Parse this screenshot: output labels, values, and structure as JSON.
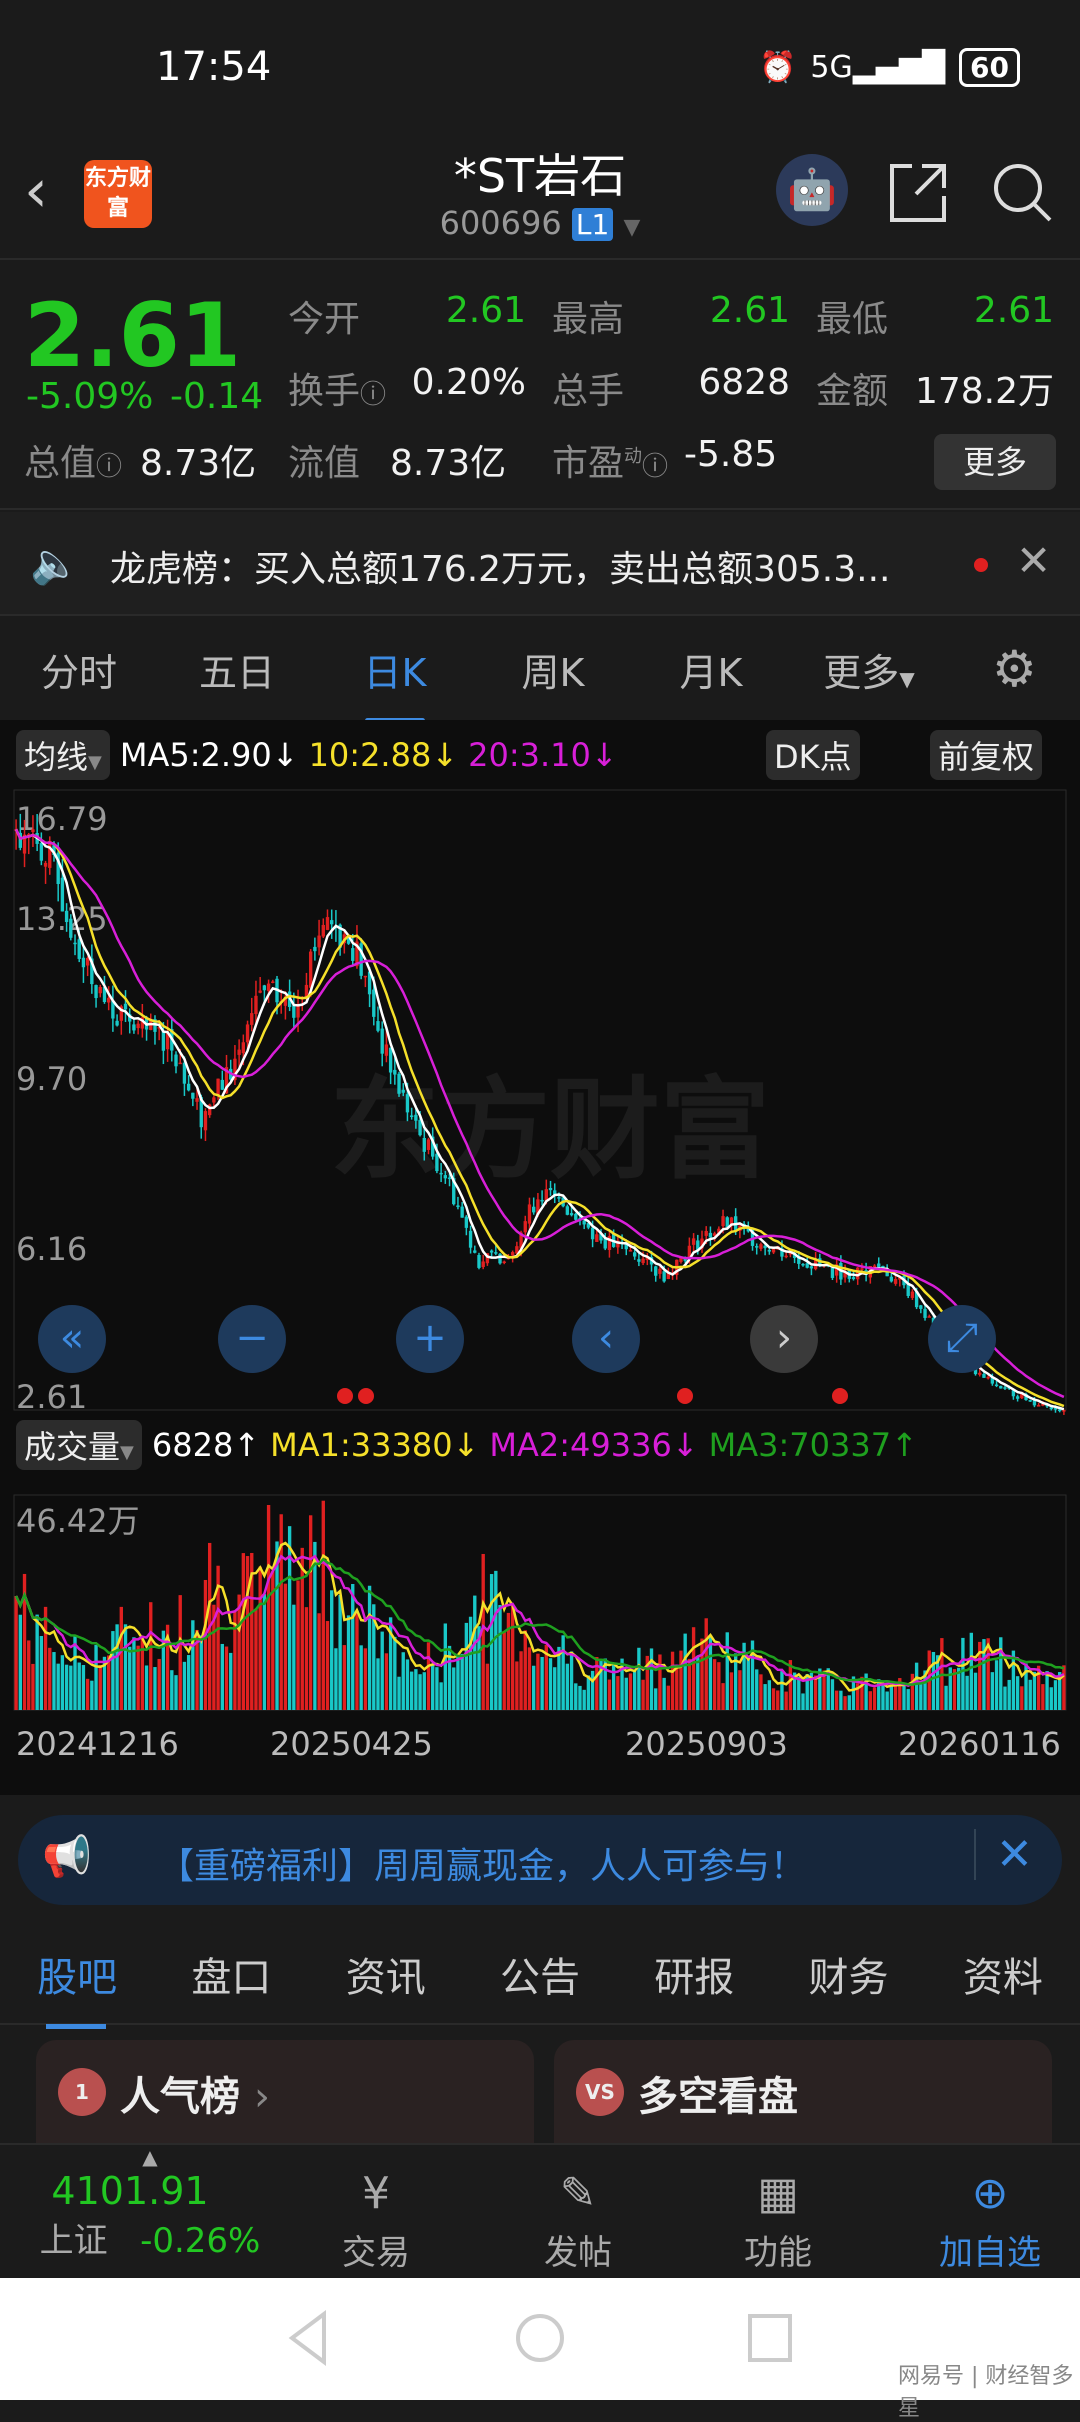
{
  "status": {
    "time": "17:54",
    "network": "5G",
    "battery": "60"
  },
  "header": {
    "logo": "东方财富",
    "title": "*ST岩石",
    "code": "600696",
    "level": "L1"
  },
  "quote": {
    "price": "2.61",
    "change_pct": "-5.09%",
    "change": "-0.14",
    "fields": [
      {
        "label": "今开",
        "value": "2.61",
        "color": "green"
      },
      {
        "label": "最高",
        "value": "2.61",
        "color": "green"
      },
      {
        "label": "最低",
        "value": "2.61",
        "color": "green"
      },
      {
        "label": "换手",
        "value": "0.20%",
        "color": "white"
      },
      {
        "label": "总手",
        "value": "6828",
        "color": "white"
      },
      {
        "label": "金额",
        "value": "178.2万",
        "color": "white"
      },
      {
        "label": "总值",
        "value": "8.73亿",
        "color": "white"
      },
      {
        "label": "流值",
        "value": "8.73亿",
        "color": "white"
      },
      {
        "label": "市盈",
        "sup": "动",
        "value": "-5.85",
        "color": "white"
      }
    ],
    "more": "更多"
  },
  "news": {
    "text": "龙虎榜：买入总额176.2万元，卖出总额305.3..."
  },
  "tabs": [
    "分时",
    "五日",
    "日K",
    "周K",
    "月K",
    "更多"
  ],
  "active_tab": "日K",
  "ma_bar": {
    "selector": "均线",
    "ma5": "MA5:2.90↓",
    "ma10": "10:2.88↓",
    "ma20": "20:3.10↓",
    "dk": "DK点",
    "adjust": "前复权"
  },
  "vol_bar": {
    "selector": "成交量",
    "vol": "6828↑",
    "ma1": "MA1:33380↓",
    "ma2": "MA2:49336↓",
    "ma3": "MA3:70337↑"
  },
  "watermark": "东方财富",
  "colors": {
    "up": "#e02020",
    "down": "#19c8c8",
    "ma5": "#ffffff",
    "ma10": "#f5e02a",
    "ma20": "#d81fd8",
    "vma3": "#1fa01f",
    "accent": "#3d8ae0",
    "green": "#22c722"
  },
  "chart_data": {
    "type": "candlestick",
    "y_ticks": [
      "16.79",
      "13.25",
      "9.70",
      "6.16",
      "2.61"
    ],
    "ylim": [
      2.61,
      16.79
    ],
    "x_ticks": [
      "20241216",
      "20250425",
      "20250903",
      "20260116"
    ],
    "close_keypoints": [
      15.9,
      15.4,
      13.2,
      11.8,
      11.3,
      11.1,
      9.35,
      10.4,
      12.2,
      11.8,
      13.9,
      13.2,
      10.7,
      9.0,
      7.9,
      6.0,
      6.2,
      7.6,
      7.2,
      6.5,
      6.2,
      5.7,
      6.4,
      6.9,
      6.5,
      6.2,
      5.9,
      5.7,
      5.9,
      5.3,
      4.3,
      3.5,
      3.1,
      2.8,
      2.61
    ],
    "volume_max": "46.42万",
    "volume_keypoints_wan": [
      22,
      14,
      10,
      12,
      18,
      12,
      28,
      24,
      20,
      34,
      30,
      20,
      14,
      8,
      12,
      22,
      18,
      14,
      10,
      8,
      8,
      10,
      14,
      12,
      9,
      7,
      6,
      5,
      6,
      8,
      10,
      12,
      10,
      8,
      6
    ]
  },
  "promo": {
    "text": "【重磅福利】周周赢现金，人人可参与！"
  },
  "bottom_tabs": [
    "股吧",
    "盘口",
    "资讯",
    "公告",
    "研报",
    "财务",
    "资料"
  ],
  "cards": [
    {
      "title": "人气榜",
      "icon": "1"
    },
    {
      "title": "多空看盘",
      "icon": "VS"
    }
  ],
  "nav": {
    "index_value": "4101.91",
    "index_name": "上证",
    "index_change": "-0.26%",
    "items": [
      "交易",
      "发帖",
      "功能",
      "加自选"
    ]
  },
  "footer_watermark": "网易号 | 财经智多星"
}
